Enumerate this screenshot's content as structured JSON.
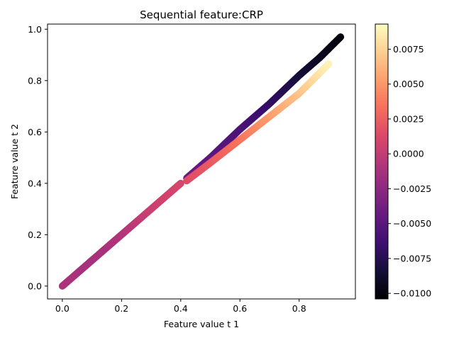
{
  "chart_data": {
    "type": "scatter",
    "title": "Sequential feature:CRP",
    "xlabel": "Feature value t 1",
    "ylabel": "Feature value t 2",
    "xlim": [
      -0.05,
      0.99
    ],
    "ylim": [
      -0.05,
      1.02
    ],
    "xticks": [
      0.0,
      0.2,
      0.4,
      0.6,
      0.8
    ],
    "xtick_labels": [
      "0.0",
      "0.2",
      "0.4",
      "0.6",
      "0.8"
    ],
    "yticks": [
      0.0,
      0.2,
      0.4,
      0.6,
      0.8,
      1.0
    ],
    "ytick_labels": [
      "0.0",
      "0.2",
      "0.4",
      "0.6",
      "0.8",
      "1.0"
    ],
    "colormap": "magma",
    "colorbar": {
      "min": -0.0104,
      "max": 0.0093,
      "ticks": [
        -0.01,
        -0.0075,
        -0.005,
        -0.0025,
        0.0,
        0.0025,
        0.005,
        0.0075
      ],
      "tick_labels": [
        "−0.0100",
        "−0.0075",
        "−0.0050",
        "−0.0025",
        "0.0000",
        "0.0025",
        "0.0050",
        "0.0075"
      ]
    },
    "series": [
      {
        "description_of_segment": "main diagonal, low range",
        "x": [
          0.0,
          0.05,
          0.1,
          0.15,
          0.2,
          0.25,
          0.3,
          0.35,
          0.4
        ],
        "y": [
          0.0,
          0.05,
          0.1,
          0.15,
          0.2,
          0.25,
          0.3,
          0.35,
          0.4
        ],
        "c": [
          -0.001,
          -0.0012,
          -0.0013,
          -0.0012,
          -0.0008,
          -0.0002,
          0.0004,
          0.0008,
          0.001
        ]
      },
      {
        "x": [
          0.42,
          0.5,
          0.6,
          0.7,
          0.8,
          0.87,
          0.94
        ],
        "y": [
          0.42,
          0.5,
          0.61,
          0.71,
          0.82,
          0.89,
          0.97
        ],
        "c": [
          -0.004,
          -0.0048,
          -0.0055,
          -0.0068,
          -0.0082,
          -0.0092,
          -0.0101
        ]
      },
      {
        "x": [
          0.42,
          0.5,
          0.6,
          0.7,
          0.8,
          0.9
        ],
        "y": [
          0.41,
          0.48,
          0.57,
          0.66,
          0.75,
          0.865
        ],
        "c": [
          0.0015,
          0.0022,
          0.0035,
          0.0052,
          0.0068,
          0.0088
        ]
      }
    ]
  }
}
